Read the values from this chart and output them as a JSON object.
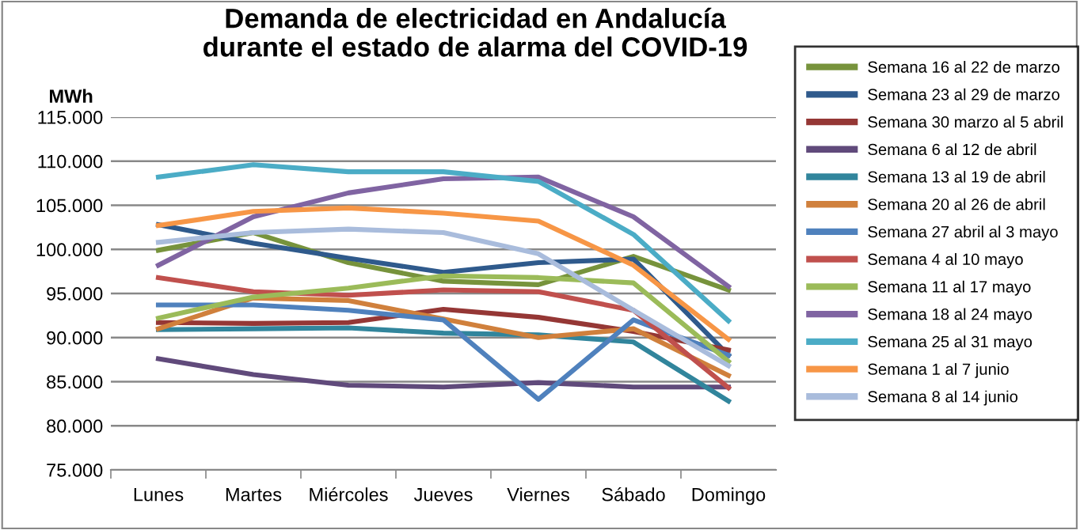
{
  "chart_data": {
    "type": "line",
    "title": "Demanda de electricidad en Andalucía\ndurante el estado de alarma del COVID-19",
    "ylabel": "MWh",
    "categories": [
      "Lunes",
      "Martes",
      "Miércoles",
      "Jueves",
      "Viernes",
      "Sábado",
      "Domingo"
    ],
    "ylim": [
      75000,
      115000
    ],
    "yticks": [
      {
        "value": 75000,
        "label": "75.000"
      },
      {
        "value": 80000,
        "label": "80.000"
      },
      {
        "value": 85000,
        "label": "85.000"
      },
      {
        "value": 90000,
        "label": "90.000"
      },
      {
        "value": 95000,
        "label": "95.000"
      },
      {
        "value": 100000,
        "label": "100.000"
      },
      {
        "value": 105000,
        "label": "105.000"
      },
      {
        "value": 110000,
        "label": "110.000"
      },
      {
        "value": 115000,
        "label": "115.000"
      }
    ],
    "grid": "y",
    "legend": "right",
    "marker": "none",
    "line_style": "solid",
    "series": [
      {
        "name": "Semana 16 al 22 de marzo",
        "color": "#77933c",
        "values": [
          99900,
          101900,
          98500,
          96400,
          96000,
          99200,
          95400
        ]
      },
      {
        "name": "Semana 23 al 29 de marzo",
        "color": "#2f5a8c",
        "values": [
          102800,
          100700,
          99000,
          97400,
          98500,
          98900,
          88000
        ]
      },
      {
        "name": "Semana 30 marzo al 5 abril",
        "color": "#953735",
        "values": [
          91700,
          91600,
          91700,
          93200,
          92300,
          90700,
          88600
        ]
      },
      {
        "name": "Semana 6 al 12 de abril",
        "color": "#604a7b",
        "values": [
          87600,
          85800,
          84600,
          84400,
          84900,
          84400,
          84400
        ]
      },
      {
        "name": "Semana 13 al 19 de abril",
        "color": "#31859c",
        "values": [
          90900,
          91000,
          91100,
          90500,
          90300,
          89500,
          82800
        ]
      },
      {
        "name": "Semana 20 al 26 de abril",
        "color": "#d0803c",
        "values": [
          91000,
          94500,
          94200,
          92100,
          90000,
          91000,
          85700
        ]
      },
      {
        "name": "Semana 27 abril al 3 mayo",
        "color": "#4f81bd",
        "values": [
          93700,
          93700,
          93100,
          92000,
          83000,
          92000,
          88000
        ]
      },
      {
        "name": "Semana 4 al 10 mayo",
        "color": "#c0504d",
        "values": [
          96800,
          95200,
          94800,
          95400,
          95200,
          93100,
          84300
        ]
      },
      {
        "name": "Semana 11 al 17 mayo",
        "color": "#9bbb59",
        "values": [
          92200,
          94600,
          95600,
          97000,
          96800,
          96200,
          87300
        ]
      },
      {
        "name": "Semana 18 al 24 mayo",
        "color": "#8064a2",
        "values": [
          98200,
          103700,
          106400,
          108000,
          108200,
          103700,
          95800
        ]
      },
      {
        "name": "Semana 25 al 31 mayo",
        "color": "#4bacc6",
        "values": [
          108200,
          109600,
          108800,
          108800,
          107700,
          101700,
          91900
        ]
      },
      {
        "name": "Semana 1 al 7 junio",
        "color": "#f79646",
        "values": [
          102700,
          104300,
          104700,
          104100,
          103200,
          98200,
          89800
        ]
      },
      {
        "name": "Semana 8 al 14 junio",
        "color": "#a9bcdc",
        "values": [
          100800,
          101900,
          102300,
          101900,
          99500,
          93100,
          86800
        ]
      }
    ]
  }
}
